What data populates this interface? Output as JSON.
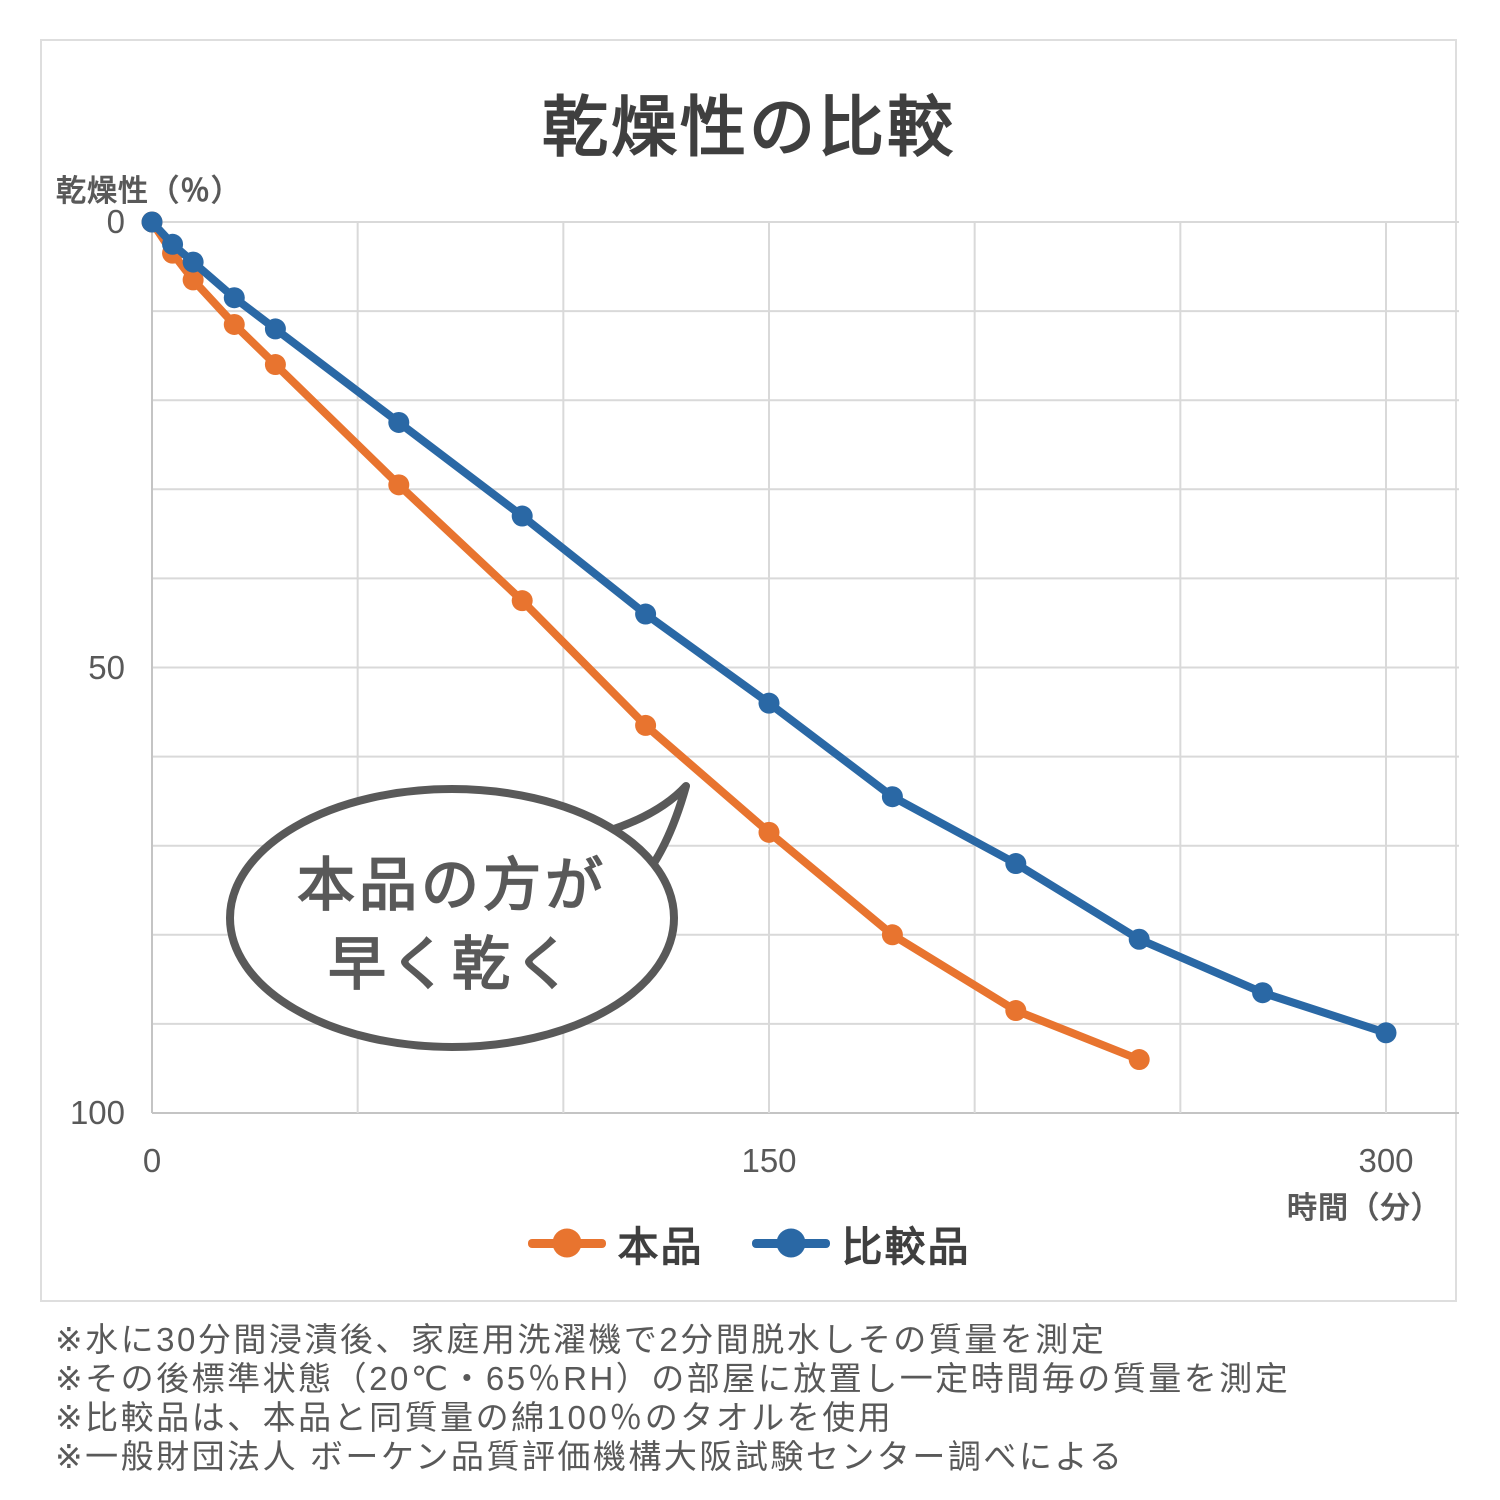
{
  "chart_data": {
    "type": "line",
    "title": "乾燥性の比較",
    "x_axis": {
      "label": "時間（分）",
      "min": 0,
      "max": 300,
      "ticks": [
        0,
        150,
        300
      ],
      "gridline_step": 50
    },
    "y_axis": {
      "label": "乾燥性（％）",
      "min": 0,
      "max": 100,
      "ticks": [
        0,
        50,
        100
      ],
      "gridline_step": 10,
      "reversed": true
    },
    "grid": "on",
    "legend_position": "bottom",
    "series": [
      {
        "name": "本品",
        "color": "#E8742F",
        "x": [
          0,
          5,
          10,
          20,
          30,
          60,
          90,
          120,
          150,
          180,
          210,
          240
        ],
        "values": [
          0,
          3.5,
          6.5,
          11.5,
          16,
          29.5,
          42.5,
          56.5,
          68.5,
          80,
          88.5,
          94
        ]
      },
      {
        "name": "比較品",
        "color": "#2A68A5",
        "x": [
          0,
          5,
          10,
          20,
          30,
          60,
          90,
          120,
          150,
          180,
          210,
          240,
          270,
          300
        ],
        "values": [
          0,
          2.5,
          4.5,
          8.5,
          12,
          22.5,
          33,
          44,
          54,
          64.5,
          72,
          80.5,
          86.5,
          91
        ]
      }
    ],
    "annotation": {
      "line1": "本品の方が",
      "line2": "早く乾く"
    }
  },
  "colors": {
    "gridline": "#D9D9D9",
    "axis_line": "#C4C4C4",
    "title_text": "#3F3F3F",
    "axis_text": "#595959",
    "bubble_border": "#595959"
  },
  "footnotes": [
    "※水に30分間浸漬後、家庭用洗濯機で2分間脱水しその質量を測定",
    "※その後標準状態（20℃・65％RH）の部屋に放置し一定時間毎の質量を測定",
    "※比較品は、本品と同質量の綿100％のタオルを使用",
    "※一般財団法人 ボーケン品質評価機構大阪試験センター調べによる"
  ]
}
